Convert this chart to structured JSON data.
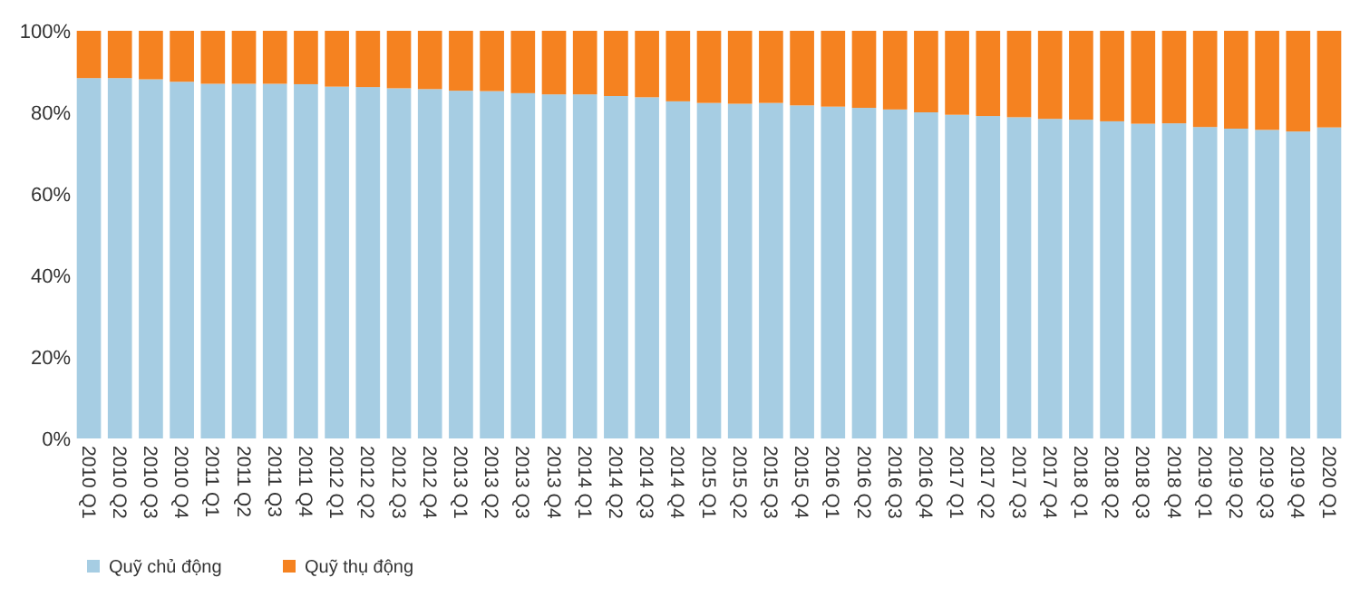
{
  "chart_data": {
    "type": "bar",
    "stacked": true,
    "categories": [
      "2010 Q1",
      "2010 Q2",
      "2010 Q3",
      "2010 Q4",
      "2011 Q1",
      "2011 Q2",
      "2011 Q3",
      "2011 Q4",
      "2012 Q1",
      "2012 Q2",
      "2012 Q3",
      "2012 Q4",
      "2013 Q1",
      "2013 Q2",
      "2013 Q3",
      "2013 Q4",
      "2014 Q1",
      "2014 Q2",
      "2014 Q3",
      "2014 Q4",
      "2015 Q1",
      "2015 Q2",
      "2015 Q3",
      "2015 Q4",
      "2016 Q1",
      "2016 Q2",
      "2016 Q3",
      "2016 Q4",
      "2017 Q1",
      "2017 Q2",
      "2017 Q3",
      "2017 Q4",
      "2018 Q1",
      "2018 Q2",
      "2018 Q3",
      "2018 Q4",
      "2019 Q1",
      "2019 Q2",
      "2019 Q3",
      "2019 Q4",
      "2020 Q1"
    ],
    "series": [
      {
        "name": "Quỹ chủ động",
        "color": "#a6cde3",
        "values": [
          88.4,
          88.4,
          88.1,
          87.5,
          87,
          87,
          87,
          86.9,
          86.3,
          86.2,
          85.9,
          85.7,
          85.3,
          85.2,
          84.7,
          84.4,
          84.4,
          84,
          83.7,
          82.7,
          82.3,
          82.1,
          82.3,
          81.7,
          81.4,
          81.1,
          80.7,
          80,
          79.4,
          79.1,
          78.8,
          78.4,
          78.2,
          77.8,
          77.2,
          77.3,
          76.4,
          76,
          75.7,
          75.3,
          76.3
        ]
      },
      {
        "name": "Quỹ thụ động",
        "color": "#f58220",
        "values": [
          11.6,
          11.6,
          11.9,
          12.5,
          13,
          13,
          13,
          13.1,
          13.7,
          13.8,
          14.1,
          14.3,
          14.7,
          14.8,
          15.3,
          15.6,
          15.6,
          16,
          16.3,
          17.3,
          17.7,
          17.9,
          17.7,
          18.3,
          18.6,
          18.9,
          19.3,
          20,
          20.6,
          20.9,
          21.2,
          21.6,
          21.8,
          22.2,
          22.8,
          22.7,
          23.6,
          24,
          24.3,
          24.7,
          23.7
        ]
      }
    ],
    "ylim": [
      0,
      100
    ],
    "yticks": [
      {
        "value": 0,
        "label": "0%"
      },
      {
        "value": 20,
        "label": "20%"
      },
      {
        "value": 40,
        "label": "40%"
      },
      {
        "value": 60,
        "label": "60%"
      },
      {
        "value": 80,
        "label": "80%"
      },
      {
        "value": 100,
        "label": "100%"
      }
    ],
    "grid": false,
    "legend": "bottom left"
  }
}
